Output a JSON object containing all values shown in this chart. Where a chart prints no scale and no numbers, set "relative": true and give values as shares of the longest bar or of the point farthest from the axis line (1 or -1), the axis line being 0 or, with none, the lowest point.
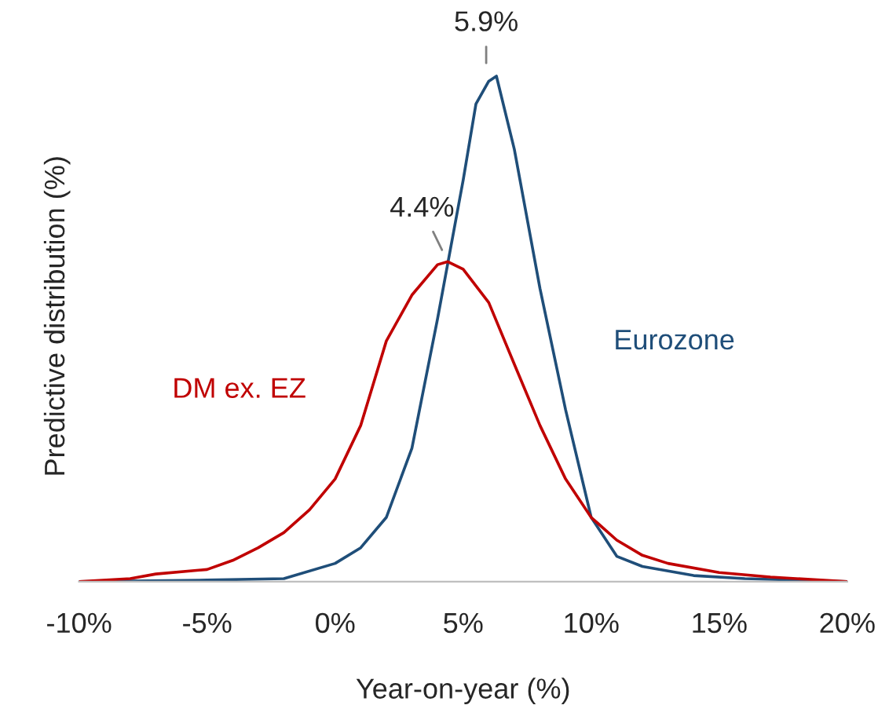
{
  "chart_data": {
    "type": "line",
    "relative": true,
    "xlabel": "Year-on-year (%)",
    "ylabel": "Predictive distribution (%)",
    "xlim": [
      -10,
      20
    ],
    "xticks": [
      {
        "value": -10,
        "label": "-10%"
      },
      {
        "value": -5,
        "label": "-5%"
      },
      {
        "value": 0,
        "label": "0%"
      },
      {
        "value": 5,
        "label": "5%"
      },
      {
        "value": 10,
        "label": "10%"
      },
      {
        "value": 15,
        "label": "15%"
      },
      {
        "value": 20,
        "label": "20%"
      }
    ],
    "grid": false,
    "legend": false,
    "series": [
      {
        "name": "Eurozone",
        "color": "#1f4e79",
        "x": [
          -10,
          -5,
          -2,
          0,
          1,
          2,
          3,
          4,
          5,
          5.5,
          6,
          6.3,
          7,
          8,
          9,
          10,
          11,
          12,
          14,
          16,
          20
        ],
        "values": [
          0,
          0.003,
          0.006,
          0.036,
          0.067,
          0.127,
          0.264,
          0.52,
          0.794,
          0.945,
          0.99,
          1.0,
          0.855,
          0.58,
          0.34,
          0.127,
          0.05,
          0.03,
          0.012,
          0.006,
          0
        ]
      },
      {
        "name": "DM ex. EZ",
        "color": "#c00000",
        "x": [
          -10,
          -8,
          -7,
          -5,
          -4,
          -3,
          -2,
          -1,
          0,
          1,
          2,
          3,
          4,
          4.4,
          5,
          6,
          7,
          8,
          9,
          10,
          11,
          12,
          13,
          15,
          17,
          20
        ],
        "values": [
          0,
          0.006,
          0.015,
          0.024,
          0.042,
          0.067,
          0.097,
          0.142,
          0.203,
          0.309,
          0.476,
          0.567,
          0.627,
          0.633,
          0.618,
          0.552,
          0.43,
          0.309,
          0.203,
          0.127,
          0.082,
          0.052,
          0.036,
          0.018,
          0.009,
          0
        ]
      }
    ],
    "annotations": [
      {
        "text": "5.9%",
        "x": 5.9,
        "y": 1.0
      },
      {
        "text": "4.4%",
        "x": 4.4,
        "y": 0.633
      }
    ]
  }
}
